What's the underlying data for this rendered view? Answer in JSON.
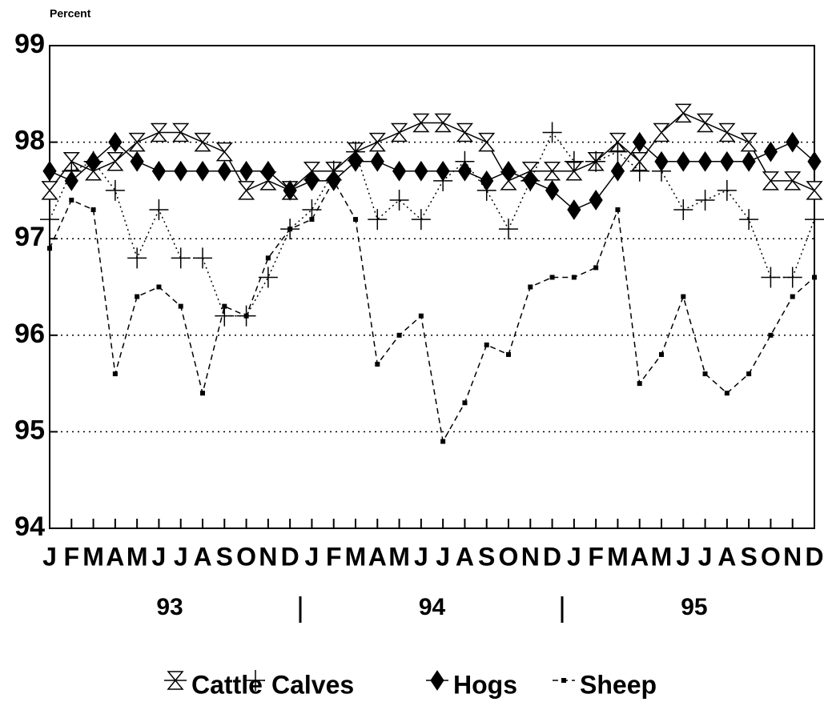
{
  "chart_data": {
    "type": "line",
    "y_label": "Percent",
    "categories": [
      "J",
      "F",
      "M",
      "A",
      "M",
      "J",
      "J",
      "A",
      "S",
      "O",
      "N",
      "D",
      "J",
      "F",
      "M",
      "A",
      "M",
      "J",
      "J",
      "A",
      "S",
      "O",
      "N",
      "D",
      "J",
      "F",
      "M",
      "A",
      "M",
      "J",
      "J",
      "A",
      "S",
      "O",
      "N",
      "D"
    ],
    "years": [
      "93",
      "94",
      "95"
    ],
    "ylim": [
      94,
      99
    ],
    "yticks": [
      94,
      95,
      96,
      97,
      98,
      99
    ],
    "grid": true,
    "series": [
      {
        "name": "Cattle",
        "color": "#000000",
        "marker": "hourglass",
        "dash": "solid",
        "values": [
          97.5,
          97.8,
          97.7,
          97.8,
          98.0,
          98.1,
          98.1,
          98.0,
          97.9,
          97.5,
          97.6,
          97.5,
          97.7,
          97.7,
          97.9,
          98.0,
          98.1,
          98.2,
          98.2,
          98.1,
          98.0,
          97.6,
          97.7,
          97.7,
          97.7,
          97.8,
          98.0,
          97.8,
          98.1,
          98.3,
          98.2,
          98.1,
          98.0,
          97.6,
          97.6,
          97.5
        ]
      },
      {
        "name": "Calves",
        "color": "#000000",
        "marker": "plus",
        "dash": "dotted",
        "values": [
          97.2,
          97.7,
          97.8,
          97.5,
          96.8,
          97.3,
          96.8,
          96.8,
          96.2,
          96.2,
          96.6,
          97.1,
          97.3,
          97.7,
          97.9,
          97.2,
          97.4,
          97.2,
          97.6,
          97.8,
          97.5,
          97.1,
          97.6,
          98.1,
          97.8,
          97.8,
          97.9,
          97.7,
          97.7,
          97.3,
          97.4,
          97.5,
          97.2,
          96.6,
          96.6,
          97.2
        ]
      },
      {
        "name": "Hogs",
        "color": "#000000",
        "marker": "diamond",
        "dash": "solid",
        "values": [
          97.7,
          97.6,
          97.8,
          98.0,
          97.8,
          97.7,
          97.7,
          97.7,
          97.7,
          97.7,
          97.7,
          97.5,
          97.6,
          97.6,
          97.8,
          97.8,
          97.7,
          97.7,
          97.7,
          97.7,
          97.6,
          97.7,
          97.6,
          97.5,
          97.3,
          97.4,
          97.7,
          98.0,
          97.8,
          97.8,
          97.8,
          97.8,
          97.8,
          97.9,
          98.0,
          97.8
        ]
      },
      {
        "name": "Sheep",
        "color": "#000000",
        "marker": "square",
        "dash": "dashed",
        "values": [
          96.9,
          97.4,
          97.3,
          95.6,
          96.4,
          96.5,
          96.3,
          95.4,
          96.3,
          96.2,
          96.8,
          97.1,
          97.2,
          97.6,
          97.2,
          95.7,
          96.0,
          96.2,
          94.9,
          95.3,
          95.9,
          95.8,
          96.5,
          96.6,
          96.6,
          96.7,
          97.3,
          95.5,
          95.8,
          96.4,
          95.6,
          95.4,
          95.6,
          96.0,
          96.4,
          96.6
        ]
      }
    ]
  }
}
